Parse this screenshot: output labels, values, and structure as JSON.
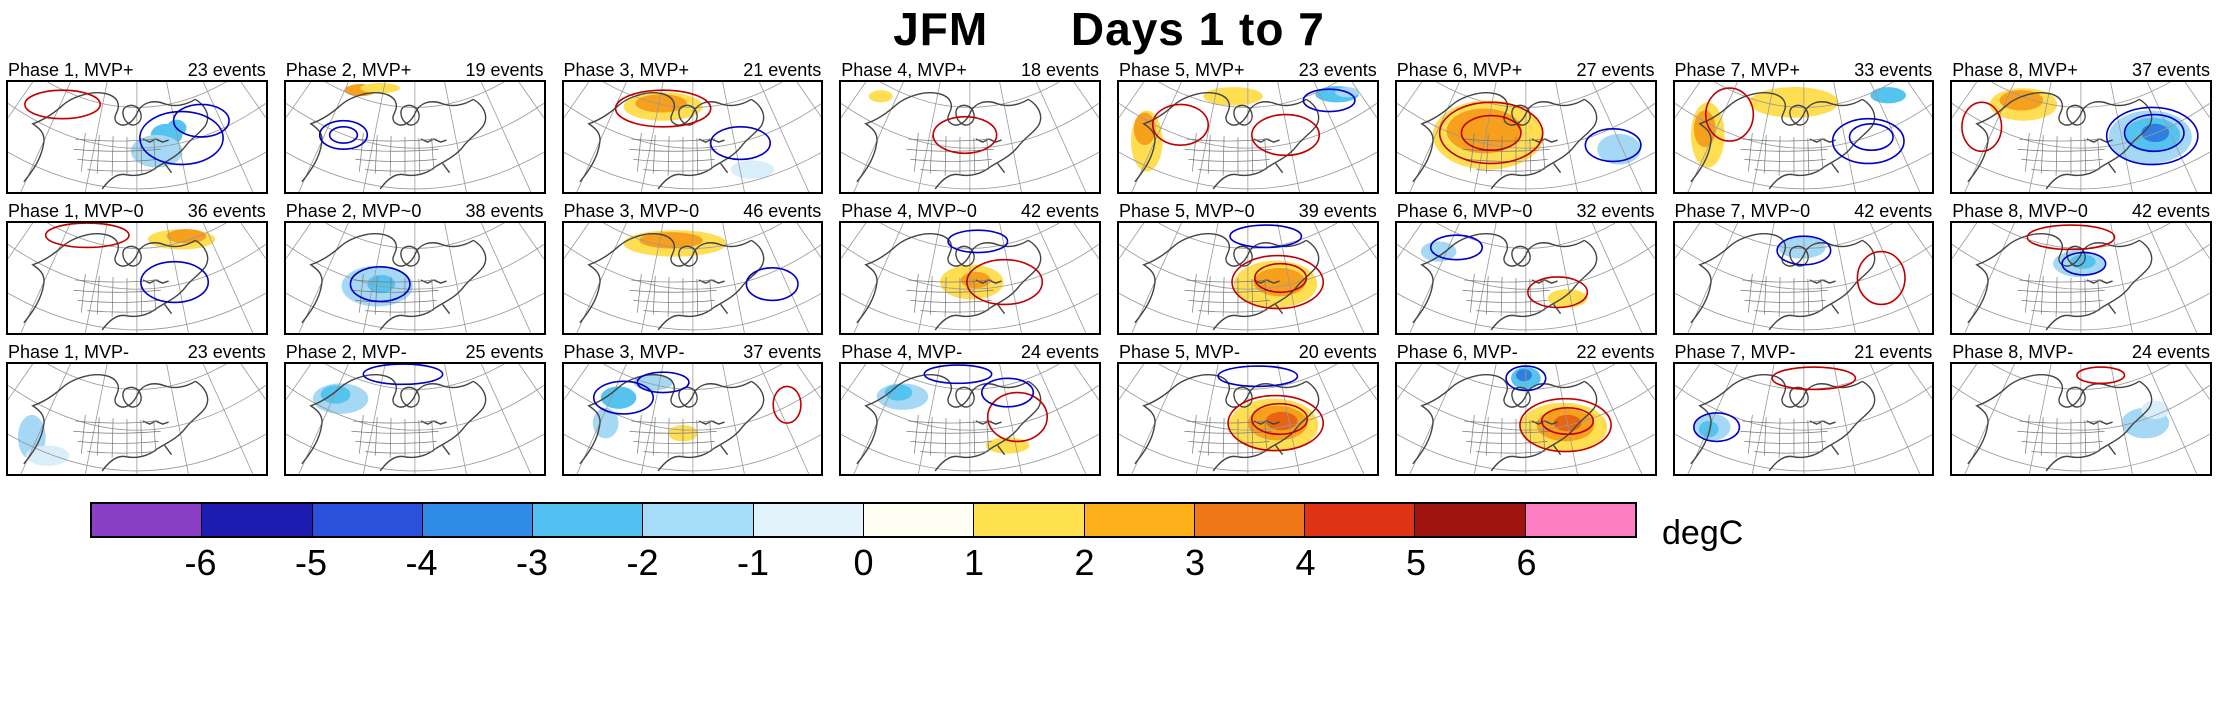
{
  "title": "JFM      Days 1 to 7",
  "unit_label": "degC",
  "colorbar": {
    "ticks": [
      "-6",
      "-5",
      "-4",
      "-3",
      "-2",
      "-1",
      "0",
      "1",
      "2",
      "3",
      "4",
      "5",
      "6"
    ],
    "colors": [
      "#8A3FC6",
      "#1C1CB2",
      "#2B50DC",
      "#2E8CE8",
      "#52C0F0",
      "#A5DCF8",
      "#E2F3FC",
      "#FFFEF2",
      "#FFE14F",
      "#FCB11B",
      "#F07818",
      "#DC3414",
      "#A01410",
      "#FC7FC4"
    ]
  },
  "palette": {
    "py": "#FFF0A8",
    "y": "#FFDE52",
    "o": "#F6A01E",
    "do": "#E86410",
    "r": "#C42A10",
    "pb": "#D9EEFA",
    "lb": "#A5D8F4",
    "c": "#55C3F0",
    "b": "#2E7FE0"
  },
  "contour_colors": {
    "red": "#C00000",
    "blue": "#0000C4"
  },
  "rows": [
    {
      "name": "MVP+",
      "panels": [
        {
          "label": "Phase 1, MVP+",
          "events": "23 events",
          "b": [
            [
              160,
              52,
              16,
              11,
              "c"
            ],
            [
              150,
              68,
              26,
              16,
              "lb"
            ],
            [
              170,
              45,
              10,
              8,
              "c"
            ]
          ],
          "c": [
            [
              175,
              55,
              42,
              26,
              "blue"
            ],
            [
              195,
              38,
              28,
              16,
              "blue"
            ],
            [
              55,
              22,
              38,
              14,
              "red"
            ]
          ]
        },
        {
          "label": "Phase 2, MVP+",
          "events": "19 events",
          "b": [
            [
              75,
              8,
              16,
              6,
              "o"
            ],
            [
              95,
              6,
              20,
              5,
              "y"
            ]
          ],
          "c": [
            [
              58,
              52,
              24,
              14,
              "blue"
            ],
            [
              58,
              52,
              14,
              8,
              "blue"
            ]
          ]
        },
        {
          "label": "Phase 3, MVP+",
          "events": "21 events",
          "b": [
            [
              100,
              24,
              40,
              14,
              "y"
            ],
            [
              98,
              21,
              26,
              9,
              "o"
            ],
            [
              190,
              86,
              22,
              9,
              "pb"
            ]
          ],
          "c": [
            [
              100,
              26,
              48,
              18,
              "red"
            ],
            [
              178,
              60,
              30,
              16,
              "blue"
            ]
          ]
        },
        {
          "label": "Phase 4, MVP+",
          "events": "18 events",
          "b": [
            [
              40,
              14,
              12,
              6,
              "y"
            ]
          ],
          "c": [
            [
              125,
              52,
              32,
              18,
              "red"
            ]
          ]
        },
        {
          "label": "Phase 5, MVP+",
          "events": "23 events",
          "b": [
            [
              28,
              58,
              16,
              30,
              "y"
            ],
            [
              26,
              46,
              11,
              16,
              "o"
            ],
            [
              115,
              14,
              30,
              9,
              "y"
            ],
            [
              220,
              12,
              22,
              8,
              "c"
            ],
            [
              230,
              10,
              12,
              5,
              "lb"
            ]
          ],
          "c": [
            [
              62,
              42,
              28,
              20,
              "red"
            ],
            [
              168,
              52,
              34,
              20,
              "red"
            ],
            [
              212,
              18,
              26,
              11,
              "blue"
            ]
          ]
        },
        {
          "label": "Phase 6, MVP+",
          "events": "27 events",
          "b": [
            [
              92,
              52,
              56,
              34,
              "y"
            ],
            [
              88,
              48,
              38,
              22,
              "o"
            ],
            [
              224,
              66,
              22,
              15,
              "lb"
            ]
          ],
          "c": [
            [
              95,
              50,
              52,
              30,
              "red"
            ],
            [
              95,
              50,
              30,
              17,
              "red"
            ],
            [
              218,
              62,
              28,
              16,
              "blue"
            ]
          ]
        },
        {
          "label": "Phase 7, MVP+",
          "events": "33 events",
          "b": [
            [
              122,
              16,
              32,
              11,
              "o"
            ],
            [
              120,
              20,
              45,
              15,
              "y"
            ],
            [
              33,
              52,
              17,
              32,
              "y"
            ],
            [
              30,
              46,
              11,
              18,
              "o"
            ],
            [
              215,
              13,
              18,
              8,
              "c"
            ]
          ],
          "c": [
            [
              195,
              58,
              36,
              22,
              "blue"
            ],
            [
              198,
              54,
              22,
              13,
              "blue"
            ],
            [
              55,
              32,
              24,
              26,
              "red"
            ]
          ]
        },
        {
          "label": "Phase 8, MVP+",
          "events": "37 events",
          "b": [
            [
              72,
              22,
              34,
              16,
              "y"
            ],
            [
              70,
              18,
              22,
              10,
              "o"
            ],
            [
              200,
              54,
              42,
              26,
              "lb"
            ],
            [
              202,
              52,
              28,
              17,
              "c"
            ],
            [
              205,
              50,
              14,
              9,
              "b"
            ]
          ],
          "c": [
            [
              202,
              53,
              46,
              28,
              "blue"
            ],
            [
              204,
              50,
              30,
              18,
              "blue"
            ],
            [
              30,
              44,
              20,
              24,
              "red"
            ]
          ]
        }
      ]
    },
    {
      "name": "MVP~0",
      "panels": [
        {
          "label": "Phase 1, MVP~0",
          "events": "36 events",
          "b": [
            [
              175,
              16,
              34,
              10,
              "y"
            ],
            [
              180,
              13,
              20,
              7,
              "o"
            ]
          ],
          "c": [
            [
              168,
              58,
              34,
              20,
              "blue"
            ],
            [
              80,
              12,
              42,
              12,
              "red"
            ]
          ]
        },
        {
          "label": "Phase 2, MVP~0",
          "events": "38 events",
          "b": [
            [
              92,
              62,
              36,
              20,
              "lb"
            ],
            [
              96,
              60,
              14,
              9,
              "c"
            ]
          ],
          "c": [
            [
              95,
              60,
              30,
              17,
              "blue"
            ]
          ]
        },
        {
          "label": "Phase 3, MVP~0",
          "events": "46 events",
          "b": [
            [
              112,
              20,
              52,
              13,
              "y"
            ],
            [
              108,
              17,
              32,
              8,
              "o"
            ]
          ],
          "c": [
            [
              210,
              60,
              26,
              16,
              "blue"
            ]
          ]
        },
        {
          "label": "Phase 4, MVP~0",
          "events": "42 events",
          "b": [
            [
              132,
              58,
              32,
              17,
              "y"
            ],
            [
              136,
              56,
              15,
              8,
              "o"
            ]
          ],
          "c": [
            [
              165,
              58,
              38,
              22,
              "red"
            ],
            [
              138,
              18,
              30,
              11,
              "blue"
            ]
          ]
        },
        {
          "label": "Phase 5, MVP~0",
          "events": "39 events",
          "b": [
            [
              158,
              60,
              42,
              23,
              "y"
            ],
            [
              162,
              58,
              26,
              14,
              "o"
            ]
          ],
          "c": [
            [
              160,
              58,
              46,
              26,
              "red"
            ],
            [
              163,
              54,
              26,
              14,
              "red"
            ],
            [
              148,
              13,
              36,
              11,
              "blue"
            ]
          ]
        },
        {
          "label": "Phase 6, MVP~0",
          "events": "32 events",
          "b": [
            [
              172,
              74,
              20,
              9,
              "y"
            ],
            [
              42,
              28,
              18,
              10,
              "lb"
            ]
          ],
          "c": [
            [
              162,
              68,
              30,
              15,
              "red"
            ],
            [
              60,
              24,
              26,
              12,
              "blue"
            ]
          ]
        },
        {
          "label": "Phase 7, MVP~0",
          "events": "42 events",
          "b": [
            [
              128,
              24,
              24,
              11,
              "lb"
            ]
          ],
          "c": [
            [
              130,
              27,
              27,
              14,
              "blue"
            ],
            [
              208,
              54,
              24,
              26,
              "red"
            ]
          ]
        },
        {
          "label": "Phase 8, MVP~0",
          "events": "42 events",
          "b": [
            [
              128,
              40,
              26,
              13,
              "lb"
            ],
            [
              132,
              38,
              13,
              7,
              "c"
            ]
          ],
          "c": [
            [
              120,
              14,
              44,
              12,
              "red"
            ],
            [
              133,
              40,
              22,
              11,
              "blue"
            ]
          ]
        }
      ]
    },
    {
      "name": "MVP-",
      "panels": [
        {
          "label": "Phase 1, MVP-",
          "events": "23 events",
          "b": [
            [
              24,
              72,
              14,
              22,
              "lb"
            ],
            [
              40,
              90,
              22,
              10,
              "pb"
            ]
          ],
          "c": []
        },
        {
          "label": "Phase 2, MVP-",
          "events": "25 events",
          "b": [
            [
              55,
              34,
              28,
              15,
              "lb"
            ],
            [
              50,
              30,
              15,
              9,
              "c"
            ]
          ],
          "c": [
            [
              118,
              10,
              40,
              10,
              "blue"
            ]
          ]
        },
        {
          "label": "Phase 3, MVP-",
          "events": "37 events",
          "b": [
            [
              55,
              33,
              18,
              11,
              "c"
            ],
            [
              42,
              58,
              13,
              15,
              "lb"
            ],
            [
              120,
              68,
              15,
              8,
              "y"
            ],
            [
              90,
              18,
              20,
              8,
              "lb"
            ]
          ],
          "c": [
            [
              60,
              33,
              30,
              16,
              "blue"
            ],
            [
              100,
              18,
              26,
              10,
              "blue"
            ],
            [
              225,
              40,
              14,
              18,
              "red"
            ]
          ]
        },
        {
          "label": "Phase 4, MVP-",
          "events": "24 events",
          "b": [
            [
              62,
              32,
              26,
              13,
              "lb"
            ],
            [
              58,
              28,
              14,
              8,
              "c"
            ],
            [
              168,
              80,
              22,
              8,
              "y"
            ]
          ],
          "c": [
            [
              178,
              52,
              30,
              24,
              "red"
            ],
            [
              168,
              28,
              26,
              14,
              "blue"
            ],
            [
              118,
              10,
              34,
              9,
              "blue"
            ]
          ]
        },
        {
          "label": "Phase 5, MVP-",
          "events": "20 events",
          "b": [
            [
              156,
              60,
              45,
              26,
              "y"
            ],
            [
              160,
              58,
              30,
              17,
              "o"
            ],
            [
              164,
              56,
              16,
              9,
              "do"
            ]
          ],
          "c": [
            [
              158,
              58,
              48,
              27,
              "red"
            ],
            [
              162,
              54,
              28,
              15,
              "red"
            ],
            [
              140,
              12,
              40,
              10,
              "blue"
            ]
          ]
        },
        {
          "label": "Phase 6, MVP-",
          "events": "22 events",
          "b": [
            [
              168,
              62,
              44,
              24,
              "y"
            ],
            [
              170,
              60,
              29,
              16,
              "o"
            ],
            [
              172,
              58,
              14,
              8,
              "do"
            ],
            [
              130,
              14,
              15,
              11,
              "c"
            ],
            [
              128,
              11,
              8,
              6,
              "b"
            ]
          ],
          "c": [
            [
              170,
              60,
              46,
              26,
              "red"
            ],
            [
              172,
              56,
              26,
              13,
              "red"
            ],
            [
              130,
              14,
              20,
              12,
              "blue"
            ]
          ]
        },
        {
          "label": "Phase 7, MVP-",
          "events": "21 events",
          "b": [
            [
              38,
              62,
              18,
              13,
              "lb"
            ],
            [
              34,
              64,
              10,
              8,
              "c"
            ]
          ],
          "c": [
            [
              42,
              62,
              23,
              14,
              "blue"
            ],
            [
              140,
              14,
              42,
              11,
              "red"
            ]
          ]
        },
        {
          "label": "Phase 8, MVP-",
          "events": "24 events",
          "b": [
            [
              195,
              58,
              24,
              15,
              "lb"
            ],
            [
              205,
              45,
              14,
              9,
              "pb"
            ]
          ],
          "c": [
            [
              150,
              11,
              24,
              8,
              "red"
            ]
          ]
        }
      ]
    }
  ],
  "chart_data": {
    "type": "table",
    "title": "JFM Days 1 to 7",
    "columns": [
      "Phase 1",
      "Phase 2",
      "Phase 3",
      "Phase 4",
      "Phase 5",
      "Phase 6",
      "Phase 7",
      "Phase 8"
    ],
    "rows": [
      {
        "name": "MVP+",
        "events": [
          23,
          19,
          21,
          18,
          23,
          27,
          33,
          37
        ]
      },
      {
        "name": "MVP~0",
        "events": [
          36,
          38,
          46,
          42,
          39,
          32,
          42,
          42
        ]
      },
      {
        "name": "MVP-",
        "events": [
          23,
          25,
          37,
          24,
          20,
          22,
          21,
          24
        ]
      }
    ],
    "colorbar": {
      "label": "degC",
      "ticks": [
        -6,
        -5,
        -4,
        -3,
        -2,
        -1,
        0,
        1,
        2,
        3,
        4,
        5,
        6
      ],
      "range": [
        -6,
        6
      ]
    }
  }
}
